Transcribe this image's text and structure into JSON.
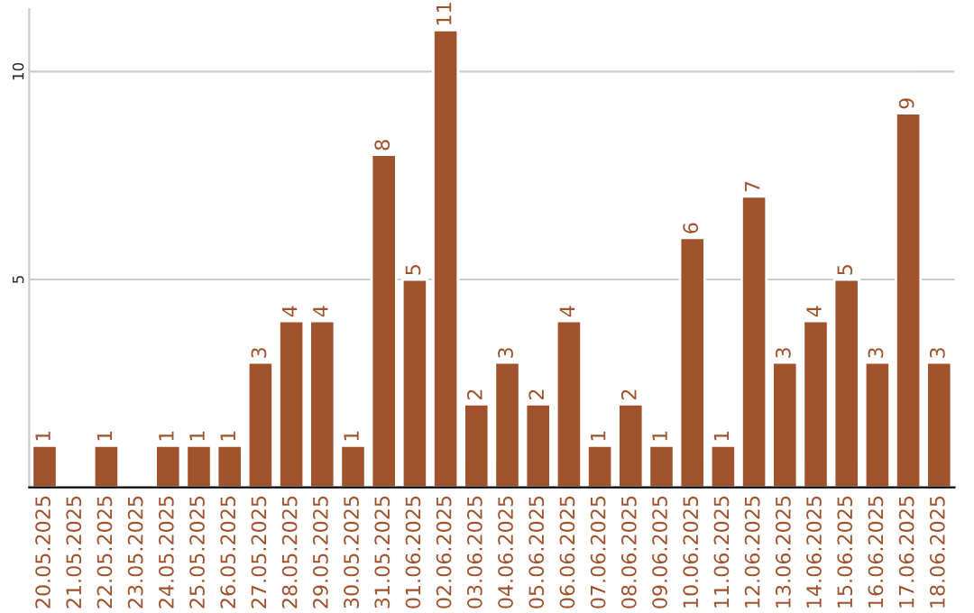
{
  "chart_data": {
    "type": "bar",
    "categories": [
      "20.05.2025",
      "21.05.2025",
      "22.05.2025",
      "23.05.2025",
      "24.05.2025",
      "25.05.2025",
      "26.05.2025",
      "27.05.2025",
      "28.05.2025",
      "29.05.2025",
      "30.05.2025",
      "31.05.2025",
      "01.06.2025",
      "02.06.2025",
      "03.06.2025",
      "04.06.2025",
      "05.06.2025",
      "06.06.2025",
      "07.06.2025",
      "08.06.2025",
      "09.06.2025",
      "10.06.2025",
      "11.06.2025",
      "12.06.2025",
      "13.06.2025",
      "14.06.2025",
      "15.06.2025",
      "16.06.2025",
      "17.06.2025",
      "18.06.2025"
    ],
    "values": [
      1,
      null,
      1,
      null,
      1,
      1,
      1,
      3,
      4,
      4,
      1,
      8,
      5,
      11,
      2,
      3,
      2,
      4,
      1,
      2,
      1,
      6,
      1,
      7,
      3,
      4,
      5,
      3,
      9,
      3
    ],
    "color": "#a0522d",
    "ylim": [
      0,
      11.5
    ],
    "yticks": [
      5,
      10
    ],
    "grid": "y",
    "data_labels": true
  }
}
